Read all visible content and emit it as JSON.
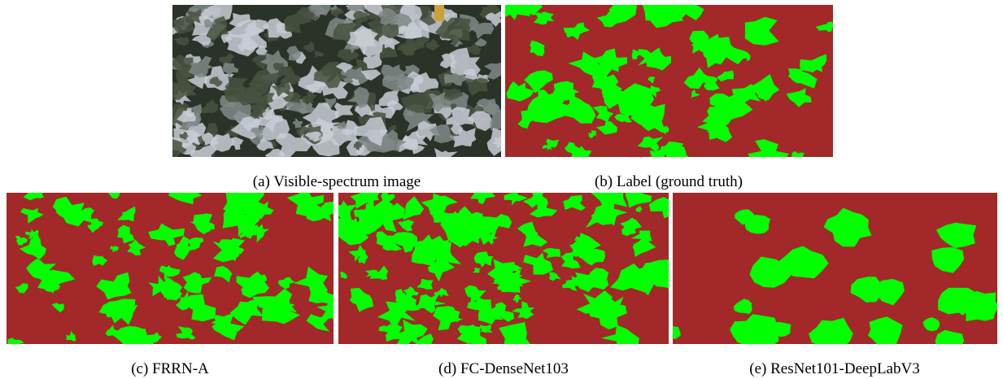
{
  "figure": {
    "panels": [
      {
        "caption": "(a) Visible-spectrum image"
      },
      {
        "caption": "(b) Label (ground truth)"
      },
      {
        "caption": "(c) FRRN-A"
      },
      {
        "caption": "(d) FC-DenseNet103"
      },
      {
        "caption": "(e) ResNet101-DeepLabV3"
      }
    ]
  }
}
